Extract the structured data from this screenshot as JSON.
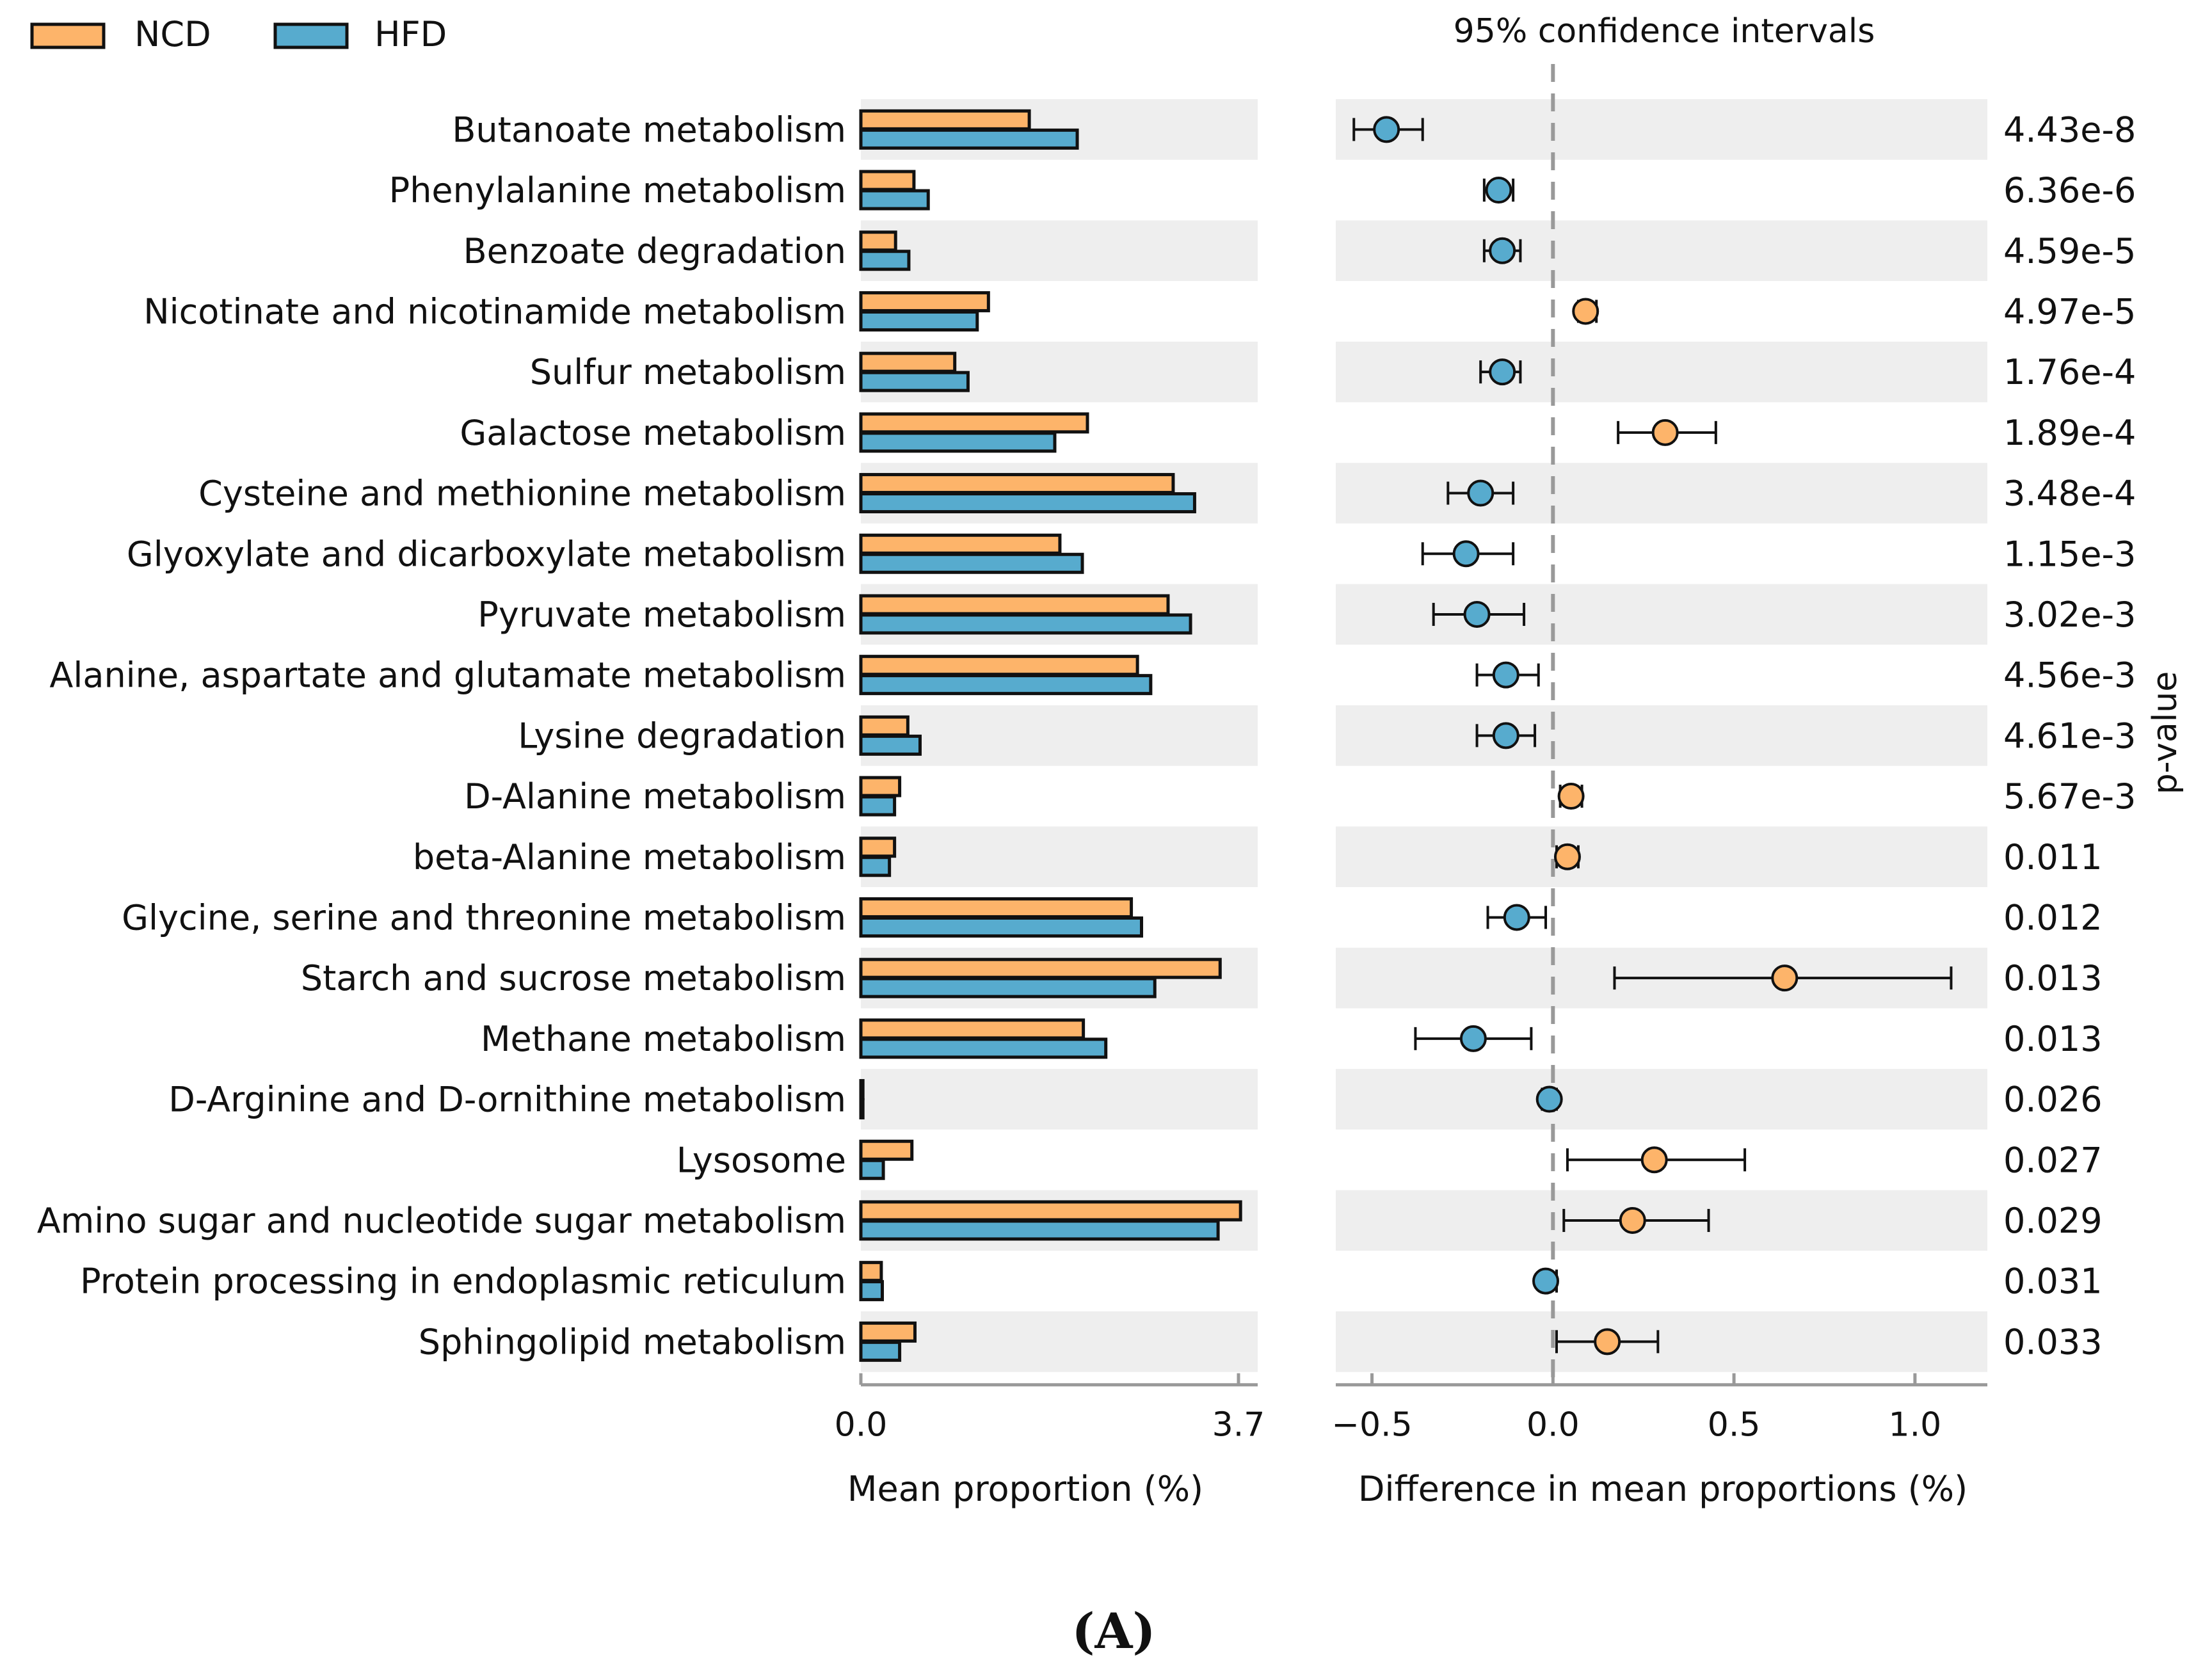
{
  "chart_data": {
    "type": "bar",
    "legend": {
      "placement": "top-left",
      "entries": [
        {
          "name": "NCD",
          "color": "#FDB46A"
        },
        {
          "name": "HFD",
          "color": "#57ABCE"
        }
      ]
    },
    "ci_title": "95% confidence intervals",
    "pvalue_label": "p-value",
    "panel_label": "(A)",
    "left_panel": {
      "xlabel": "Mean proportion (%)",
      "xlim": [
        0,
        3.7
      ],
      "ticks": [
        "0.0",
        "3.7"
      ]
    },
    "right_panel": {
      "xlabel": "Difference in mean proportions (%)",
      "xlim": [
        -0.6,
        1.2
      ],
      "ticks": [
        "−0.5",
        "0.0",
        "0.5",
        "1.0"
      ],
      "tick_values": [
        -0.5,
        0.0,
        0.5,
        1.0
      ]
    },
    "categories": [
      "Butanoate metabolism",
      "Phenylalanine metabolism",
      "Benzoate degradation",
      "Nicotinate and nicotinamide metabolism",
      "Sulfur metabolism",
      "Galactose metabolism",
      "Cysteine and methionine metabolism",
      "Glyoxylate and dicarboxylate metabolism",
      "Pyruvate metabolism",
      "Alanine, aspartate and glutamate metabolism",
      "Lysine degradation",
      "D-Alanine metabolism",
      "beta-Alanine metabolism",
      "Glycine, serine and threonine metabolism",
      "Starch and sucrose metabolism",
      "Methane metabolism",
      "D-Arginine and D-ornithine metabolism",
      "Lysosome",
      "Amino sugar and nucleotide sugar metabolism",
      "Protein processing in endoplasmic reticulum",
      "Sphingolipid metabolism"
    ],
    "series": [
      {
        "name": "NCD",
        "values": [
          1.65,
          0.52,
          0.34,
          1.25,
          0.92,
          2.22,
          3.06,
          1.95,
          3.01,
          2.71,
          0.46,
          0.38,
          0.33,
          2.65,
          3.52,
          2.18,
          0.02,
          0.5,
          3.72,
          0.2,
          0.53
        ]
      },
      {
        "name": "HFD",
        "values": [
          2.12,
          0.66,
          0.47,
          1.14,
          1.05,
          1.9,
          3.27,
          2.17,
          3.23,
          2.84,
          0.58,
          0.33,
          0.28,
          2.75,
          2.88,
          2.4,
          0.02,
          0.22,
          3.5,
          0.21,
          0.38
        ]
      }
    ],
    "difference": {
      "mean": [
        -0.46,
        -0.15,
        -0.14,
        0.09,
        -0.14,
        0.31,
        -0.2,
        -0.24,
        -0.21,
        -0.13,
        -0.13,
        0.05,
        0.04,
        -0.1,
        0.64,
        -0.22,
        -0.01,
        0.28,
        0.22,
        -0.02,
        0.15
      ],
      "ci_low": [
        -0.55,
        -0.19,
        -0.19,
        0.07,
        -0.2,
        0.18,
        -0.29,
        -0.36,
        -0.33,
        -0.21,
        -0.21,
        0.02,
        0.01,
        -0.18,
        0.17,
        -0.38,
        -0.03,
        0.04,
        0.03,
        -0.03,
        0.01
      ],
      "ci_high": [
        -0.36,
        -0.11,
        -0.09,
        0.12,
        -0.09,
        0.45,
        -0.11,
        -0.11,
        -0.08,
        -0.04,
        -0.05,
        0.08,
        0.07,
        -0.02,
        1.1,
        -0.06,
        0.01,
        0.53,
        0.43,
        0.01,
        0.29
      ],
      "higher_group": [
        "HFD",
        "HFD",
        "HFD",
        "NCD",
        "HFD",
        "NCD",
        "HFD",
        "HFD",
        "HFD",
        "HFD",
        "HFD",
        "NCD",
        "NCD",
        "HFD",
        "NCD",
        "HFD",
        "HFD",
        "NCD",
        "NCD",
        "HFD",
        "NCD"
      ]
    },
    "p_values": [
      "4.43e-8",
      "6.36e-6",
      "4.59e-5",
      "4.97e-5",
      "1.76e-4",
      "1.89e-4",
      "3.48e-4",
      "1.15e-3",
      "3.02e-3",
      "4.56e-3",
      "4.61e-3",
      "5.67e-3",
      "0.011",
      "0.012",
      "0.013",
      "0.013",
      "0.026",
      "0.027",
      "0.029",
      "0.031",
      "0.033"
    ]
  }
}
